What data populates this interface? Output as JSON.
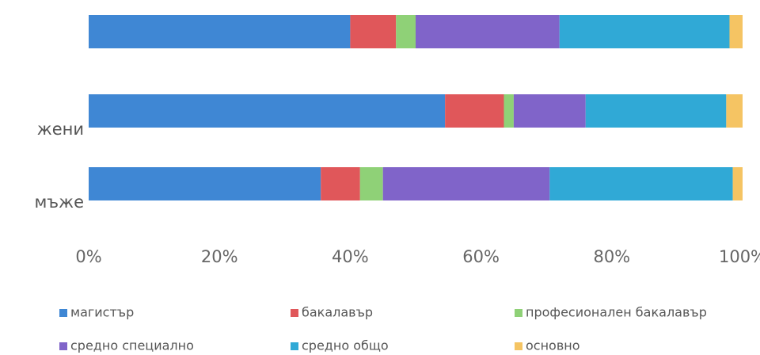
{
  "chart_data": {
    "type": "stacked_barh",
    "categories": [
      null,
      "жени",
      "мъже"
    ],
    "series": [
      {
        "name": "магистър",
        "color": "#3f87d4",
        "values": [
          40,
          54.5,
          35.5
        ]
      },
      {
        "name": "бакалавър",
        "color": "#e0575a",
        "values": [
          7,
          9,
          6
        ]
      },
      {
        "name": "професионален бакалавър",
        "color": "#8fd177",
        "values": [
          3,
          1.5,
          3.5
        ]
      },
      {
        "name": "средно специално",
        "color": "#8064c9",
        "values": [
          22,
          11,
          25.5
        ]
      },
      {
        "name": "средно общо",
        "color": "#30a9d6",
        "values": [
          26,
          21.5,
          28
        ]
      },
      {
        "name": "основно",
        "color": "#f5c463",
        "values": [
          2,
          2.5,
          1.5
        ]
      }
    ],
    "xlim": [
      0,
      100
    ],
    "xticks": [
      {
        "value": 0,
        "label": "0%"
      },
      {
        "value": 20,
        "label": "20%"
      },
      {
        "value": 40,
        "label": "40%"
      },
      {
        "value": 60,
        "label": "60%"
      },
      {
        "value": 80,
        "label": "80%"
      },
      {
        "value": 100,
        "label": "100%"
      }
    ],
    "legend": "bottom"
  }
}
